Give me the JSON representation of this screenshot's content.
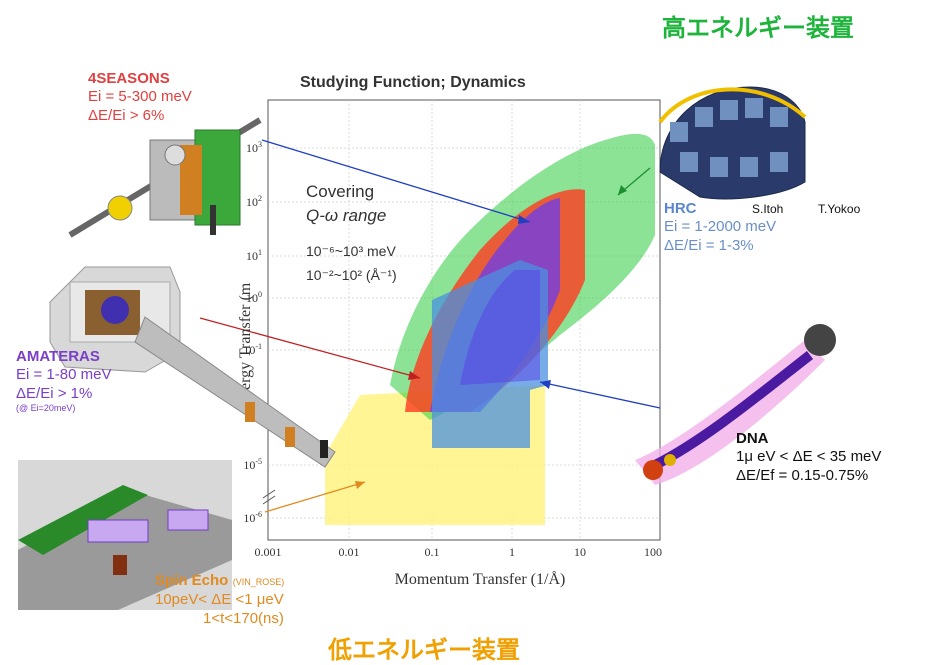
{
  "headings": {
    "high_energy": "高エネルギー装置",
    "low_energy": "低エネルギー装置"
  },
  "chart": {
    "title": "Studying Function; Dynamics",
    "xlabel": "Momentum Transfer (1/Å)",
    "ylabel_visible": "ergy Transfer (m",
    "x_ticks": [
      "0.001",
      "0.01",
      "0.1",
      "1",
      "10",
      "100"
    ],
    "y_ticks": [
      "10^3",
      "10^2",
      "10^1",
      "10^0",
      "10^-1",
      "10^-5",
      "10^-6"
    ],
    "covering": {
      "line1": "Covering",
      "line2": "Q-ω range",
      "line3": "10⁻⁶~10³ meV",
      "line4": "10⁻²~10² (Å⁻¹)"
    }
  },
  "instruments": {
    "seasons": {
      "name": "4SEASONS",
      "line1": "Ei = 5-300 meV",
      "line2": "ΔE/Ei > 6%",
      "color": "#e04040"
    },
    "amateras": {
      "name": "AMATERAS",
      "line1": "Ei = 1-80 meV",
      "line2": "ΔE/Ei > 1%",
      "note": "(@ Ei=20meV)",
      "color": "#7a3fc8"
    },
    "hrc": {
      "name": "HRC",
      "line1": "Ei = 1-2000 meV",
      "line2": "ΔE/Ei = 1-3%",
      "color": "#5a86d0"
    },
    "dna": {
      "name": "DNA",
      "line1": "1μ eV < ΔE < 35 meV",
      "line2": "ΔE/Ef = 0.15-0.75%",
      "color": "#111111"
    },
    "spin_echo": {
      "name": "Spin Echo",
      "tag": "(VIN_ROSE)",
      "line1": "10peV< ΔE <1 μeV",
      "line2": "1<t<170(ns)",
      "color": "#e08a20"
    }
  },
  "credits": {
    "itoh": "S.Itoh",
    "yokoo": "T.Yokoo"
  },
  "colors": {
    "hrc_region": "#2ecc40",
    "seasons_region": "#ff3b1f",
    "amateras_region": "#6a3cf0",
    "dna_region": "#4a90e0",
    "spin_echo_region": "#fff27a"
  }
}
